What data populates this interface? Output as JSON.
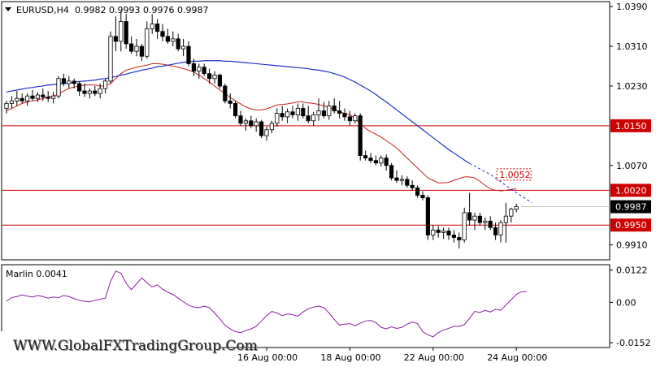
{
  "chart_data": [
    {
      "type": "candlestick",
      "symbol_header": "EURUSD,H4",
      "ohlc_header": "0.9982 0.9993 0.9976 0.9987",
      "ylim": [
        0.988,
        1.04
      ],
      "y_ticks": [
        "1.0390",
        "1.0310",
        "1.0230",
        "1.0070",
        "0.9910"
      ],
      "x_ticks": [
        {
          "label": "16 Aug 00:00",
          "index": 50
        },
        {
          "label": "18 Aug 00:00",
          "index": 66
        },
        {
          "label": "22 Aug 00:00",
          "index": 82
        },
        {
          "label": "24 Aug 00:00",
          "index": 98
        }
      ],
      "candles": [
        [
          1.0185,
          1.02,
          1.0175,
          1.0195
        ],
        [
          1.0195,
          1.021,
          1.0185,
          1.02
        ],
        [
          1.02,
          1.022,
          1.019,
          1.0205
        ],
        [
          1.0205,
          1.0215,
          1.0195,
          1.02
        ],
        [
          1.02,
          1.0215,
          1.019,
          1.021
        ],
        [
          1.021,
          1.0222,
          1.02,
          1.0205
        ],
        [
          1.0205,
          1.0218,
          1.0198,
          1.0212
        ],
        [
          1.0212,
          1.0225,
          1.02,
          1.0208
        ],
        [
          1.0208,
          1.022,
          1.0198,
          1.0205
        ],
        [
          1.0205,
          1.0218,
          1.0195,
          1.021
        ],
        [
          1.021,
          1.025,
          1.0205,
          1.0245
        ],
        [
          1.0245,
          1.0255,
          1.023,
          1.0235
        ],
        [
          1.0235,
          1.025,
          1.0225,
          1.024
        ],
        [
          1.024,
          1.0245,
          1.0225,
          1.0235
        ],
        [
          1.0235,
          1.024,
          1.021,
          1.022
        ],
        [
          1.022,
          1.0235,
          1.0208,
          1.0215
        ],
        [
          1.0215,
          1.0225,
          1.0205,
          1.022
        ],
        [
          1.022,
          1.023,
          1.021,
          1.0215
        ],
        [
          1.0215,
          1.0235,
          1.0205,
          1.0225
        ],
        [
          1.0225,
          1.0245,
          1.0215,
          1.024
        ],
        [
          1.024,
          1.034,
          1.0235,
          1.033
        ],
        [
          1.033,
          1.037,
          1.03,
          1.032
        ],
        [
          1.032,
          1.038,
          1.03,
          1.036
        ],
        [
          1.036,
          1.0375,
          1.0305,
          1.0315
        ],
        [
          1.0315,
          1.033,
          1.0295,
          1.03
        ],
        [
          1.03,
          1.0325,
          1.029,
          1.031
        ],
        [
          1.031,
          1.0315,
          1.028,
          1.029
        ],
        [
          1.029,
          1.036,
          1.0285,
          1.0345
        ],
        [
          1.0345,
          1.0375,
          1.0335,
          1.0355
        ],
        [
          1.0355,
          1.0365,
          1.0325,
          1.034
        ],
        [
          1.034,
          1.0355,
          1.032,
          1.033
        ],
        [
          1.033,
          1.0345,
          1.0315,
          1.032
        ],
        [
          1.032,
          1.034,
          1.031,
          1.0325
        ],
        [
          1.0325,
          1.0335,
          1.03,
          1.0305
        ],
        [
          1.0305,
          1.0325,
          1.029,
          1.031
        ],
        [
          1.031,
          1.032,
          1.027,
          1.0275
        ],
        [
          1.0275,
          1.0285,
          1.025,
          1.026
        ],
        [
          1.026,
          1.0275,
          1.0245,
          1.0268
        ],
        [
          1.0268,
          1.0275,
          1.025,
          1.0255
        ],
        [
          1.0255,
          1.0265,
          1.0235,
          1.0245
        ],
        [
          1.0245,
          1.026,
          1.0235,
          1.0252
        ],
        [
          1.0252,
          1.0255,
          1.0225,
          1.023
        ],
        [
          1.023,
          1.0235,
          1.0195,
          1.02
        ],
        [
          1.02,
          1.0215,
          1.0185,
          1.0195
        ],
        [
          1.0195,
          1.02,
          1.0165,
          1.017
        ],
        [
          1.017,
          1.018,
          1.015,
          1.0155
        ],
        [
          1.0155,
          1.0165,
          1.014,
          1.016
        ],
        [
          1.016,
          1.017,
          1.0145,
          1.015
        ],
        [
          1.015,
          1.0165,
          1.0138,
          1.0158
        ],
        [
          1.0158,
          1.0162,
          1.0125,
          1.013
        ],
        [
          1.013,
          1.0148,
          1.012,
          1.0142
        ],
        [
          1.0142,
          1.016,
          1.0135,
          1.0155
        ],
        [
          1.0155,
          1.0185,
          1.0148,
          1.0175
        ],
        [
          1.0175,
          1.019,
          1.016,
          1.0168
        ],
        [
          1.0168,
          1.0185,
          1.0155,
          1.0178
        ],
        [
          1.0178,
          1.019,
          1.0165,
          1.0172
        ],
        [
          1.0172,
          1.0195,
          1.016,
          1.0185
        ],
        [
          1.0185,
          1.0195,
          1.0165,
          1.017
        ],
        [
          1.017,
          1.019,
          1.0155,
          1.016
        ],
        [
          1.016,
          1.0178,
          1.015,
          1.0172
        ],
        [
          1.0172,
          1.0205,
          1.016,
          1.018
        ],
        [
          1.018,
          1.0198,
          1.0165,
          1.017
        ],
        [
          1.017,
          1.02,
          1.0162,
          1.019
        ],
        [
          1.019,
          1.0205,
          1.0175,
          1.018
        ],
        [
          1.018,
          1.02,
          1.0165,
          1.0175
        ],
        [
          1.0175,
          1.0185,
          1.016,
          1.0168
        ],
        [
          1.0168,
          1.018,
          1.015,
          1.016
        ],
        [
          1.016,
          1.0175,
          1.0155,
          1.017
        ],
        [
          1.017,
          1.0175,
          1.008,
          1.009
        ],
        [
          1.009,
          1.01,
          1.008,
          1.0085
        ],
        [
          1.0085,
          1.0095,
          1.0075,
          1.008
        ],
        [
          1.008,
          1.009,
          1.007,
          1.0075
        ],
        [
          1.0075,
          1.009,
          1.0068,
          1.0085
        ],
        [
          1.0085,
          1.0092,
          1.006,
          1.007
        ],
        [
          1.007,
          1.0075,
          1.004,
          1.0045
        ],
        [
          1.0045,
          1.006,
          1.0035,
          1.004
        ],
        [
          1.004,
          1.005,
          1.003,
          1.0042
        ],
        [
          1.0042,
          1.0048,
          1.0025,
          1.003
        ],
        [
          1.003,
          1.004,
          1.002,
          1.0025
        ],
        [
          1.0025,
          1.003,
          1.0005,
          1.001
        ],
        [
          1.001,
          1.0018,
          1.0,
          1.0005
        ],
        [
          1.0005,
          1.001,
          0.992,
          0.993
        ],
        [
          0.993,
          0.995,
          0.992,
          0.994
        ],
        [
          0.994,
          0.9948,
          0.9925,
          0.9935
        ],
        [
          0.9935,
          0.9945,
          0.9922,
          0.9938
        ],
        [
          0.9938,
          0.9945,
          0.992,
          0.993
        ],
        [
          0.993,
          0.994,
          0.9915,
          0.9925
        ],
        [
          0.9925,
          0.9935,
          0.9903,
          0.992
        ],
        [
          0.992,
          0.9985,
          0.9915,
          0.9975
        ],
        [
          0.9975,
          1.0015,
          0.995,
          0.996
        ],
        [
          0.996,
          0.9975,
          0.994,
          0.9968
        ],
        [
          0.9968,
          0.9975,
          0.995,
          0.9955
        ],
        [
          0.9955,
          0.9965,
          0.994,
          0.9958
        ],
        [
          0.9958,
          0.9968,
          0.994,
          0.9945
        ],
        [
          0.9945,
          0.9955,
          0.992,
          0.993
        ],
        [
          0.993,
          0.996,
          0.9915,
          0.9955
        ],
        [
          0.9955,
          0.9995,
          0.9915,
          0.9968
        ],
        [
          0.9968,
          0.9985,
          0.9955,
          0.9982
        ],
        [
          0.9982,
          0.9993,
          0.9976,
          0.9987
        ]
      ],
      "moving_average_red": [
        1.018,
        1.0185,
        1.019,
        1.0195,
        1.0198,
        1.02,
        1.0202,
        1.0205,
        1.0208,
        1.021,
        1.0214,
        1.022,
        1.0225,
        1.0228,
        1.023,
        1.0232,
        1.0232,
        1.0232,
        1.023,
        1.023,
        1.0235,
        1.0245,
        1.0255,
        1.0262,
        1.0265,
        1.0268,
        1.027,
        1.0272,
        1.0275,
        1.0275,
        1.0274,
        1.0272,
        1.027,
        1.0268,
        1.0265,
        1.0262,
        1.0258,
        1.0252,
        1.0245,
        1.0238,
        1.023,
        1.0222,
        1.0215,
        1.0207,
        1.02,
        1.0194,
        1.0188,
        1.0184,
        1.0182,
        1.0182,
        1.0184,
        1.0188,
        1.0192,
        1.0193,
        1.0194,
        1.0196,
        1.0198,
        1.0198,
        1.0196,
        1.0195,
        1.0193,
        1.019,
        1.0187,
        1.0183,
        1.0178,
        1.0175,
        1.0172,
        1.0165,
        1.0155,
        1.0145,
        1.0138,
        1.0133,
        1.0127,
        1.012,
        1.0113,
        1.0105,
        1.0095,
        1.0085,
        1.0075,
        1.0065,
        1.0055,
        1.0045,
        1.004,
        1.0035,
        1.0035,
        1.0036,
        1.004,
        1.0044,
        1.0047,
        1.0047,
        1.0045,
        1.0038,
        1.003,
        1.0023,
        1.002,
        1.0019,
        1.002,
        1.0022,
        1.0023
      ],
      "moving_average_blue": [
        1.0218,
        1.022,
        1.0222,
        1.0224,
        1.0226,
        1.0227,
        1.0229,
        1.023,
        1.0232,
        1.0233,
        1.0234,
        1.0235,
        1.0236,
        1.0238,
        1.0239,
        1.024,
        1.0241,
        1.0242,
        1.0244,
        1.0245,
        1.0247,
        1.0249,
        1.0252,
        1.0254,
        1.0257,
        1.0259,
        1.0262,
        1.0264,
        1.0266,
        1.0269,
        1.027,
        1.0272,
        1.0274,
        1.0276,
        1.0278,
        1.0279,
        1.028,
        1.028,
        1.0281,
        1.0281,
        1.0281,
        1.0281,
        1.028,
        1.028,
        1.0279,
        1.0278,
        1.0277,
        1.0276,
        1.0275,
        1.0274,
        1.0273,
        1.0272,
        1.0271,
        1.027,
        1.0269,
        1.0268,
        1.0267,
        1.0266,
        1.0265,
        1.0263,
        1.0262,
        1.026,
        1.0258,
        1.0255,
        1.0252,
        1.0248,
        1.0243,
        1.0238,
        1.0232,
        1.0226,
        1.022,
        1.0213,
        1.0205,
        1.0198,
        1.019,
        1.0182,
        1.0174,
        1.0166,
        1.0158,
        1.015,
        1.0142,
        1.0134,
        1.0126,
        1.0118,
        1.011,
        1.0102,
        1.0095,
        1.0088,
        1.0081,
        1.0074
      ],
      "ma_blue_projection": {
        "values": [
          1.0074,
          1.0052,
          1.0022,
          0.9995
        ],
        "label": "1.0052"
      },
      "horizontal_levels": [
        {
          "value": 1.015,
          "label": "1.0150"
        },
        {
          "value": 1.002,
          "label": "1.0020"
        },
        {
          "value": 0.995,
          "label": "0.9950"
        }
      ],
      "current_price": {
        "value": 0.9987,
        "label": "0.9987"
      }
    },
    {
      "type": "line",
      "indicator_header": "Marlin 0.0041",
      "ylim": [
        -0.017,
        0.0142
      ],
      "y_ticks": [
        "0.0122",
        "0.00",
        "-0.0152"
      ],
      "values": [
        0.0005,
        0.0018,
        0.0022,
        0.0028,
        0.0024,
        0.002,
        0.0026,
        0.0022,
        0.0016,
        0.002,
        0.0018,
        0.0026,
        0.0022,
        0.0014,
        0.0008,
        0.0004,
        0.0002,
        0.0008,
        0.0012,
        0.0016,
        0.008,
        0.0118,
        0.011,
        0.0072,
        0.0048,
        0.007,
        0.0092,
        0.0074,
        0.0058,
        0.0066,
        0.005,
        0.0038,
        0.003,
        0.0016,
        0.0002,
        -0.001,
        -0.0018,
        -0.002,
        -0.0014,
        -0.002,
        -0.004,
        -0.0062,
        -0.0086,
        -0.01,
        -0.011,
        -0.0114,
        -0.0106,
        -0.01,
        -0.009,
        -0.007,
        -0.005,
        -0.0034,
        -0.004,
        -0.005,
        -0.0044,
        -0.0046,
        -0.0052,
        -0.0036,
        -0.0024,
        -0.0018,
        -0.0014,
        -0.002,
        -0.004,
        -0.0064,
        -0.0086,
        -0.0082,
        -0.008,
        -0.0088,
        -0.0078,
        -0.007,
        -0.0068,
        -0.0076,
        -0.0094,
        -0.01,
        -0.0092,
        -0.0098,
        -0.0094,
        -0.0082,
        -0.0074,
        -0.008,
        -0.011,
        -0.0122,
        -0.013,
        -0.0114,
        -0.0104,
        -0.0098,
        -0.009,
        -0.009,
        -0.0084,
        -0.006,
        -0.0034,
        -0.0038,
        -0.003,
        -0.0036,
        -0.0026,
        -0.003,
        -0.001,
        0.001,
        0.003,
        0.004,
        0.0041
      ]
    }
  ],
  "colors": {
    "ma_red": "#cc1f1f",
    "ma_blue": "#1f2fcc",
    "level_line": "#cc0000",
    "level_label_bg": "#cc0000",
    "indicator": "#8a1f9e",
    "candle": "#000000"
  },
  "watermark": "WWW.GlobalFXTradingGroup.Com"
}
